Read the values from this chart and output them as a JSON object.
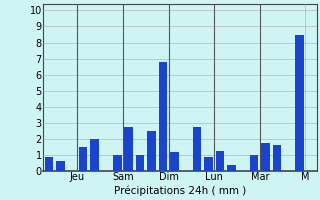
{
  "bars": [
    {
      "x": 0,
      "height": 0.9
    },
    {
      "x": 1,
      "height": 0.6
    },
    {
      "x": 3,
      "height": 1.5
    },
    {
      "x": 4,
      "height": 2.0
    },
    {
      "x": 6,
      "height": 1.0
    },
    {
      "x": 7,
      "height": 2.75
    },
    {
      "x": 8,
      "height": 1.0
    },
    {
      "x": 9,
      "height": 2.5
    },
    {
      "x": 10,
      "height": 6.8
    },
    {
      "x": 11,
      "height": 1.2
    },
    {
      "x": 13,
      "height": 2.75
    },
    {
      "x": 14,
      "height": 0.9
    },
    {
      "x": 15,
      "height": 1.25
    },
    {
      "x": 16,
      "height": 0.4
    },
    {
      "x": 18,
      "height": 1.0
    },
    {
      "x": 19,
      "height": 1.75
    },
    {
      "x": 20,
      "height": 1.6
    },
    {
      "x": 22,
      "height": 8.5
    }
  ],
  "day_separators": [
    2.5,
    6.5,
    10.5,
    14.5,
    18.5
  ],
  "day_ticks": [
    {
      "x": 2.5,
      "label": "Jeu"
    },
    {
      "x": 6.5,
      "label": "Sam"
    },
    {
      "x": 10.5,
      "label": "Dim"
    },
    {
      "x": 14.5,
      "label": "Lun"
    },
    {
      "x": 18.5,
      "label": "Mar"
    },
    {
      "x": 22.5,
      "label": "M"
    }
  ],
  "ylabel_ticks": [
    0,
    1,
    2,
    3,
    4,
    5,
    6,
    7,
    8,
    9,
    10
  ],
  "ylim": [
    0,
    10.4
  ],
  "xlim": [
    -0.5,
    23.5
  ],
  "xlabel": "Précipitations 24h ( mm )",
  "bg_color": "#cff4f4",
  "bar_color": "#1a44cc",
  "bar_width": 0.75,
  "grid_color": "#aaaaaa",
  "grid_linewidth": 0.4,
  "separator_color": "#555555",
  "separator_linewidth": 0.8,
  "spine_color": "#444444",
  "xlabel_fontsize": 7.5,
  "ytick_fontsize": 7,
  "xtick_fontsize": 7
}
